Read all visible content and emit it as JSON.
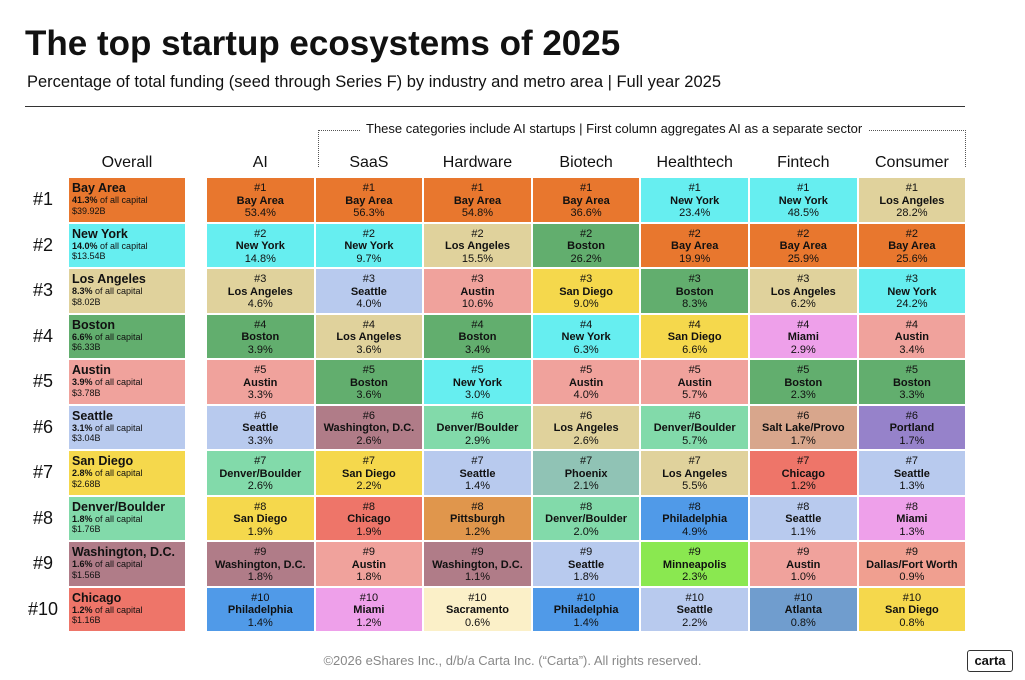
{
  "header": {
    "title": "The top startup ecosystems of 2025",
    "subtitle": "Percentage of total funding (seed through Series F) by industry and metro area | Full year 2025"
  },
  "note": "These categories include AI startups | First column aggregates AI as a separate sector",
  "ranks": [
    "#1",
    "#2",
    "#3",
    "#4",
    "#5",
    "#6",
    "#7",
    "#8",
    "#9",
    "#10"
  ],
  "overall": {
    "heading": "Overall",
    "share_suffix": "of all capital",
    "rows": [
      {
        "metro": "Bay Area",
        "share": "41.3%",
        "amount": "$39.92B"
      },
      {
        "metro": "New York",
        "share": "14.0%",
        "amount": "$13.54B"
      },
      {
        "metro": "Los Angeles",
        "share": "8.3%",
        "amount": "$8.02B"
      },
      {
        "metro": "Boston",
        "share": "6.6%",
        "amount": "$6.33B"
      },
      {
        "metro": "Austin",
        "share": "3.9%",
        "amount": "$3.78B"
      },
      {
        "metro": "Seattle",
        "share": "3.1%",
        "amount": "$3.04B"
      },
      {
        "metro": "San Diego",
        "share": "2.8%",
        "amount": "$2.68B"
      },
      {
        "metro": "Denver/Boulder",
        "share": "1.8%",
        "amount": "$1.76B"
      },
      {
        "metro": "Washington, D.C.",
        "share": "1.6%",
        "amount": "$1.56B"
      },
      {
        "metro": "Chicago",
        "share": "1.2%",
        "amount": "$1.16B"
      }
    ]
  },
  "columns": [
    {
      "name": "AI",
      "cells": [
        {
          "metro": "Bay Area",
          "share": "53.4%"
        },
        {
          "metro": "New York",
          "share": "14.8%"
        },
        {
          "metro": "Los Angeles",
          "share": "4.6%"
        },
        {
          "metro": "Boston",
          "share": "3.9%"
        },
        {
          "metro": "Austin",
          "share": "3.3%"
        },
        {
          "metro": "Seattle",
          "share": "3.3%"
        },
        {
          "metro": "Denver/Boulder",
          "share": "2.6%"
        },
        {
          "metro": "San Diego",
          "share": "1.9%"
        },
        {
          "metro": "Washington, D.C.",
          "share": "1.8%"
        },
        {
          "metro": "Philadelphia",
          "share": "1.4%"
        }
      ]
    },
    {
      "name": "SaaS",
      "cells": [
        {
          "metro": "Bay Area",
          "share": "56.3%"
        },
        {
          "metro": "New York",
          "share": "9.7%"
        },
        {
          "metro": "Seattle",
          "share": "4.0%"
        },
        {
          "metro": "Los Angeles",
          "share": "3.6%"
        },
        {
          "metro": "Boston",
          "share": "3.6%"
        },
        {
          "metro": "Washington, D.C.",
          "share": "2.6%"
        },
        {
          "metro": "San Diego",
          "share": "2.2%"
        },
        {
          "metro": "Chicago",
          "share": "1.9%"
        },
        {
          "metro": "Austin",
          "share": "1.8%"
        },
        {
          "metro": "Miami",
          "share": "1.2%"
        }
      ]
    },
    {
      "name": "Hardware",
      "cells": [
        {
          "metro": "Bay Area",
          "share": "54.8%"
        },
        {
          "metro": "Los Angeles",
          "share": "15.5%"
        },
        {
          "metro": "Austin",
          "share": "10.6%"
        },
        {
          "metro": "Boston",
          "share": "3.4%"
        },
        {
          "metro": "New York",
          "share": "3.0%"
        },
        {
          "metro": "Denver/Boulder",
          "share": "2.9%"
        },
        {
          "metro": "Seattle",
          "share": "1.4%"
        },
        {
          "metro": "Pittsburgh",
          "share": "1.2%"
        },
        {
          "metro": "Washington, D.C.",
          "share": "1.1%"
        },
        {
          "metro": "Sacramento",
          "share": "0.6%"
        }
      ]
    },
    {
      "name": "Biotech",
      "cells": [
        {
          "metro": "Bay Area",
          "share": "36.6%"
        },
        {
          "metro": "Boston",
          "share": "26.2%"
        },
        {
          "metro": "San Diego",
          "share": "9.0%"
        },
        {
          "metro": "New York",
          "share": "6.3%"
        },
        {
          "metro": "Austin",
          "share": "4.0%"
        },
        {
          "metro": "Los Angeles",
          "share": "2.6%"
        },
        {
          "metro": "Phoenix",
          "share": "2.1%"
        },
        {
          "metro": "Denver/Boulder",
          "share": "2.0%"
        },
        {
          "metro": "Seattle",
          "share": "1.8%"
        },
        {
          "metro": "Philadelphia",
          "share": "1.4%"
        }
      ]
    },
    {
      "name": "Healthtech",
      "cells": [
        {
          "metro": "New York",
          "share": "23.4%"
        },
        {
          "metro": "Bay Area",
          "share": "19.9%"
        },
        {
          "metro": "Boston",
          "share": "8.3%"
        },
        {
          "metro": "San Diego",
          "share": "6.6%"
        },
        {
          "metro": "Austin",
          "share": "5.7%"
        },
        {
          "metro": "Denver/Boulder",
          "share": "5.7%"
        },
        {
          "metro": "Los Angeles",
          "share": "5.5%"
        },
        {
          "metro": "Philadelphia",
          "share": "4.9%"
        },
        {
          "metro": "Minneapolis",
          "share": "2.3%"
        },
        {
          "metro": "Seattle",
          "share": "2.2%"
        }
      ]
    },
    {
      "name": "Fintech",
      "cells": [
        {
          "metro": "New York",
          "share": "48.5%"
        },
        {
          "metro": "Bay Area",
          "share": "25.9%"
        },
        {
          "metro": "Los Angeles",
          "share": "6.2%"
        },
        {
          "metro": "Miami",
          "share": "2.9%"
        },
        {
          "metro": "Boston",
          "share": "2.3%"
        },
        {
          "metro": "Salt Lake/Provo",
          "share": "1.7%"
        },
        {
          "metro": "Chicago",
          "share": "1.2%"
        },
        {
          "metro": "Seattle",
          "share": "1.1%"
        },
        {
          "metro": "Austin",
          "share": "1.0%"
        },
        {
          "metro": "Atlanta",
          "share": "0.8%"
        }
      ]
    },
    {
      "name": "Consumer",
      "cells": [
        {
          "metro": "Los Angeles",
          "share": "28.2%"
        },
        {
          "metro": "Bay Area",
          "share": "25.6%"
        },
        {
          "metro": "New York",
          "share": "24.2%"
        },
        {
          "metro": "Austin",
          "share": "3.4%"
        },
        {
          "metro": "Boston",
          "share": "3.3%"
        },
        {
          "metro": "Portland",
          "share": "1.7%"
        },
        {
          "metro": "Seattle",
          "share": "1.3%"
        },
        {
          "metro": "Miami",
          "share": "1.3%"
        },
        {
          "metro": "Dallas/Fort Worth",
          "share": "0.9%"
        },
        {
          "metro": "San Diego",
          "share": "0.8%"
        }
      ]
    }
  ],
  "metro_colors": {
    "Bay Area": "#e8772e",
    "New York": "#66eef0",
    "Los Angeles": "#e0d29c",
    "Boston": "#62ae6e",
    "Austin": "#f0a29c",
    "Seattle": "#b8caee",
    "San Diego": "#f5d84c",
    "Denver/Boulder": "#82daaa",
    "Washington, D.C.": "#b07c88",
    "Chicago": "#ee7569",
    "Philadelphia": "#509ae8",
    "Miami": "#eea0ea",
    "Pittsburgh": "#e0964c",
    "Phoenix": "#90c3b5",
    "Minneapolis": "#8ae850",
    "Sacramento": "#fbf0c8",
    "Salt Lake/Provo": "#d8a68c",
    "Portland": "#9682ca",
    "Dallas/Fort Worth": "#f09f90",
    "Atlanta": "#709dce"
  },
  "footer": {
    "copyright": "©2026 eShares Inc., d/b/a Carta Inc. (“Carta”). All rights reserved.",
    "logo": "carta"
  }
}
